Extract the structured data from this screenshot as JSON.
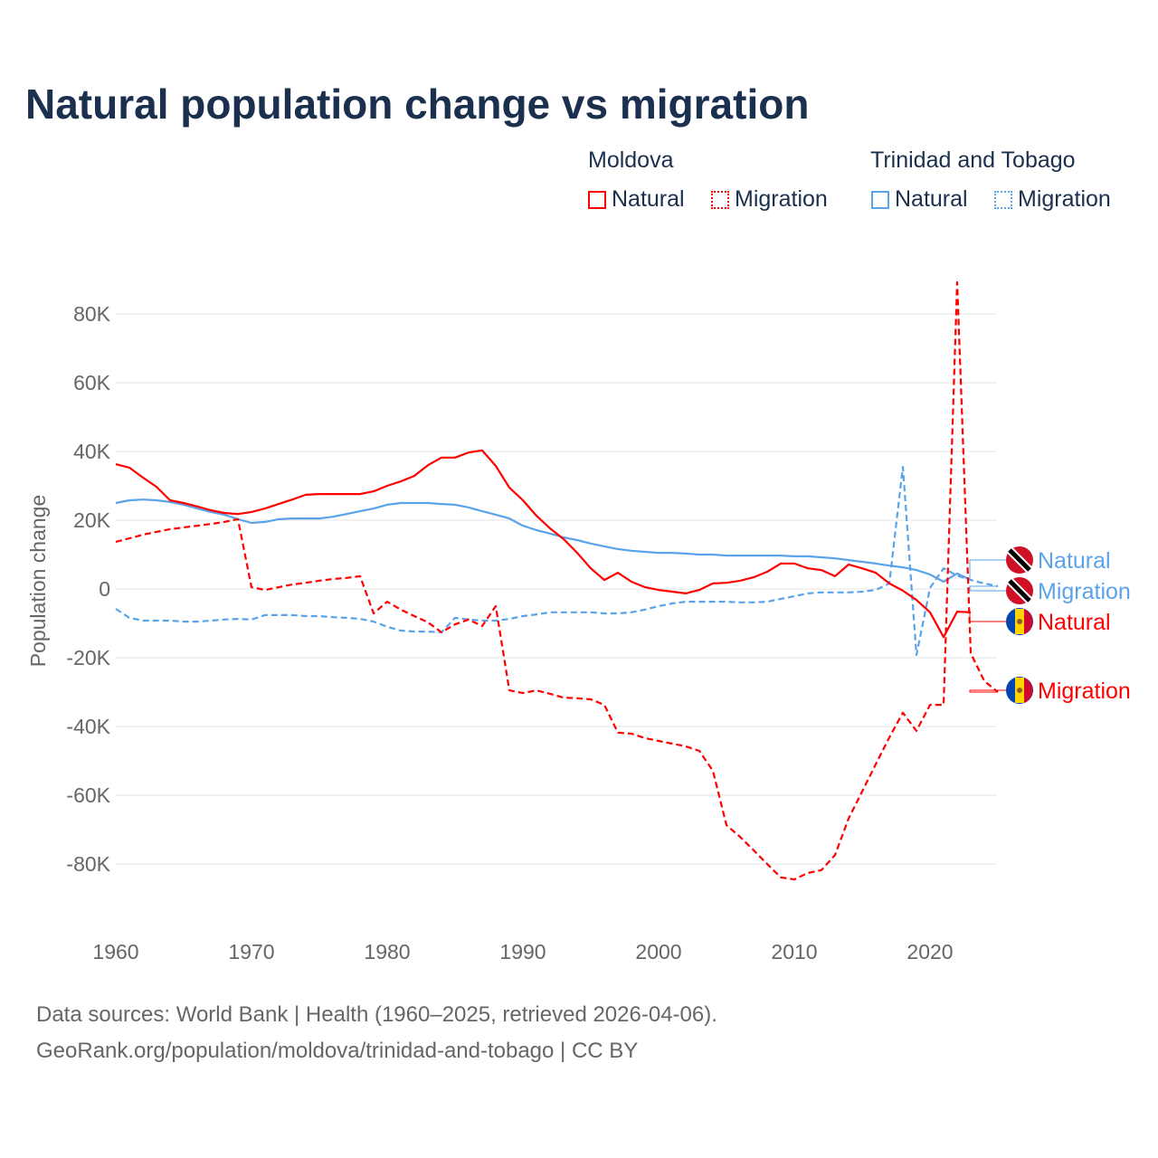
{
  "chart_data": {
    "type": "line",
    "title": "Natural population change vs migration",
    "ylabel": "Population change",
    "xlabel": "",
    "xlim": [
      1960,
      2025
    ],
    "ylim": [
      -100000,
      95000
    ],
    "x_ticks": [
      1960,
      1970,
      1980,
      1990,
      2000,
      2010,
      2020
    ],
    "x_tick_labels": [
      "1960",
      "1970",
      "1980",
      "1990",
      "2000",
      "2010",
      "2020"
    ],
    "y_ticks": [
      80000,
      60000,
      40000,
      20000,
      0,
      -20000,
      -40000,
      -60000,
      -80000
    ],
    "y_tick_labels": [
      "80K",
      "60K",
      "40K",
      "20K",
      "0",
      "-20K",
      "-40K",
      "-60K",
      "-80K"
    ],
    "grid": true,
    "legend": {
      "placement": "top-right",
      "groups": [
        {
          "name": "Moldova",
          "items": [
            "Natural",
            "Migration"
          ]
        },
        {
          "name": "Trinidad and Tobago",
          "items": [
            "Natural",
            "Migration"
          ]
        }
      ]
    },
    "series": [
      {
        "name": "Moldova Natural",
        "country": "Moldova",
        "kind": "Natural",
        "label": "Natural",
        "color": "#ff0000",
        "dashed": false,
        "start": 1960,
        "values": [
          36300,
          35300,
          32400,
          29700,
          25800,
          25000,
          24000,
          22900,
          22100,
          21800,
          22400,
          23400,
          24700,
          26000,
          27400,
          27600,
          27600,
          27600,
          27600,
          28400,
          30000,
          31300,
          32900,
          36000,
          38200,
          38200,
          39700,
          40300,
          35800,
          29500,
          25800,
          21300,
          17600,
          14500,
          10500,
          6000,
          2600,
          4700,
          2100,
          500,
          -300,
          -800,
          -1300,
          -300,
          1600,
          1800,
          2400,
          3400,
          5000,
          7400,
          7400,
          6000,
          5500,
          3700,
          7100,
          6000,
          4700,
          1600,
          -500,
          -3200,
          -6800,
          -14000,
          -6600,
          -6800
        ]
      },
      {
        "name": "Moldova Migration",
        "country": "Moldova",
        "kind": "Migration",
        "label": "Migration",
        "color": "#ff0000",
        "dashed": true,
        "start": 1960,
        "values": [
          13700,
          14700,
          15800,
          16600,
          17400,
          17900,
          18400,
          18900,
          19500,
          20300,
          500,
          -300,
          500,
          1300,
          1800,
          2400,
          2900,
          3200,
          3700,
          -7100,
          -3700,
          -6000,
          -7900,
          -9700,
          -12600,
          -10300,
          -8900,
          -10800,
          -5000,
          -29500,
          -30300,
          -29500,
          -30500,
          -31600,
          -31800,
          -32100,
          -33700,
          -41800,
          -42100,
          -43400,
          -44200,
          -45000,
          -45800,
          -47100,
          -52900,
          -68700,
          -72100,
          -76000,
          -80000,
          -83900,
          -84500,
          -82600,
          -81800,
          -77400,
          -66800,
          -58900,
          -51000,
          -43200,
          -36000,
          -41300,
          -33700,
          -33700,
          89200,
          -18700,
          -26800,
          -30000
        ]
      },
      {
        "name": "Trinidad and Tobago Natural",
        "country": "Trinidad and Tobago",
        "kind": "Natural",
        "label": "Natural",
        "color": "#5aa3ea",
        "dashed": false,
        "start": 1960,
        "values": [
          25000,
          25800,
          26000,
          25800,
          25300,
          24500,
          23400,
          22400,
          21600,
          20300,
          19200,
          19500,
          20300,
          20500,
          20500,
          20500,
          21000,
          21800,
          22600,
          23400,
          24500,
          25000,
          25000,
          25000,
          24700,
          24500,
          23700,
          22600,
          21600,
          20500,
          18400,
          17100,
          16100,
          15000,
          14200,
          13200,
          12400,
          11600,
          11100,
          10800,
          10500,
          10500,
          10300,
          10000,
          10000,
          9700,
          9700,
          9700,
          9700,
          9700,
          9500,
          9500,
          9200,
          8900,
          8400,
          7900,
          7400,
          6800,
          6300,
          5500,
          4200,
          2100,
          4500,
          2600
        ]
      },
      {
        "name": "Trinidad and Tobago Migration",
        "country": "Trinidad and Tobago",
        "kind": "Migration",
        "label": "Migration",
        "color": "#5aa3ea",
        "dashed": true,
        "start": 1960,
        "values": [
          -5800,
          -8400,
          -9200,
          -9200,
          -9200,
          -9500,
          -9500,
          -9200,
          -8900,
          -8700,
          -8900,
          -7600,
          -7600,
          -7600,
          -7900,
          -7900,
          -8200,
          -8400,
          -8700,
          -9500,
          -11000,
          -12100,
          -12400,
          -12400,
          -12600,
          -8400,
          -8900,
          -9200,
          -9200,
          -8700,
          -7900,
          -7400,
          -6800,
          -6800,
          -6800,
          -6800,
          -7100,
          -7100,
          -6800,
          -6000,
          -5000,
          -4200,
          -3700,
          -3700,
          -3700,
          -3700,
          -3900,
          -3900,
          -3700,
          -2900,
          -2100,
          -1300,
          -1000,
          -1000,
          -1000,
          -800,
          -300,
          1600,
          35500,
          -19200,
          300,
          6000,
          3900,
          2600,
          1600,
          800
        ]
      }
    ],
    "end_labels": [
      {
        "series": 2,
        "text": "Natural",
        "flag": "trinidad-and-tobago"
      },
      {
        "series": 3,
        "text": "Migration",
        "flag": "trinidad-and-tobago"
      },
      {
        "series": 0,
        "text": "Natural",
        "flag": "moldova"
      },
      {
        "series": 1,
        "text": "Migration",
        "flag": "moldova"
      }
    ]
  },
  "legend": {
    "moldova": "Moldova",
    "tt": "Trinidad and Tobago",
    "natural": "Natural",
    "migration": "Migration"
  },
  "footer": {
    "line1": "Data sources: World Bank | Health (1960–2025, retrieved 2026-04-06).",
    "line2": "GeoRank.org/population/moldova/trinidad-and-tobago | CC BY"
  }
}
